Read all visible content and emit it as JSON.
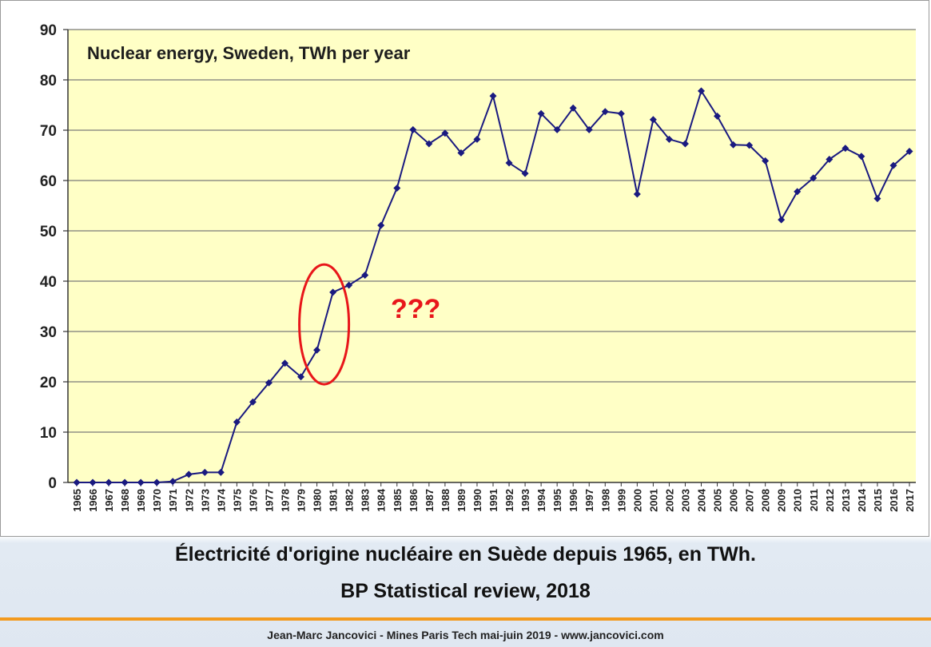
{
  "colors": {
    "plot_background": "#ffffc6",
    "line": "#1a1a80",
    "gridline": "#7a7a7a",
    "annotation": "#e8161a",
    "footer_rule": "#f39a1e"
  },
  "chart_data": {
    "type": "line",
    "title": "Nuclear energy, Sweden, TWh per year",
    "xlabel": "",
    "ylabel": "",
    "ylim": [
      0,
      90
    ],
    "yticks": [
      0,
      10,
      20,
      30,
      40,
      50,
      60,
      70,
      80,
      90
    ],
    "grid": true,
    "legend": "none",
    "series": [
      {
        "x": [
          "1965",
          "1966",
          "1967",
          "1968",
          "1969",
          "1970",
          "1971",
          "1972",
          "1973",
          "1974",
          "1975",
          "1976",
          "1977",
          "1978",
          "1979",
          "1980",
          "1981",
          "1982",
          "1983",
          "1984",
          "1985",
          "1986",
          "1987",
          "1988",
          "1989",
          "1990",
          "1991",
          "1992",
          "1993",
          "1994",
          "1995",
          "1996",
          "1997",
          "1998",
          "1999",
          "2000",
          "2001",
          "2002",
          "2003",
          "2004",
          "2005",
          "2006",
          "2007",
          "2008",
          "2009",
          "2010",
          "2011",
          "2012",
          "2013",
          "2014",
          "2015",
          "2016",
          "2017"
        ],
        "values": [
          0,
          0,
          0,
          0,
          0,
          0,
          0.2,
          1.6,
          2.0,
          2.0,
          12.0,
          16.0,
          19.8,
          23.7,
          21.0,
          26.3,
          37.8,
          39.2,
          41.2,
          51.1,
          58.5,
          70.1,
          67.3,
          69.4,
          65.5,
          68.2,
          76.8,
          63.5,
          61.4,
          73.3,
          70.1,
          74.4,
          70.1,
          73.7,
          73.3,
          57.3,
          72.1,
          68.2,
          67.3,
          77.8,
          72.8,
          67.1,
          67.0,
          63.9,
          52.2,
          57.8,
          60.5,
          64.2,
          66.4,
          64.8,
          56.4,
          63.0,
          65.8
        ]
      }
    ],
    "annotations": [
      {
        "type": "ellipse",
        "around_years": [
          "1980",
          "1981"
        ]
      },
      {
        "type": "text",
        "text": "???"
      }
    ]
  },
  "caption": {
    "line1": "Électricité d'origine nucléaire en Suède depuis 1965, en TWh.",
    "line2": "BP Statistical review, 2018"
  },
  "footer": {
    "text": "Jean-Marc Jancovici - Mines Paris Tech mai-juin 2019 - www.jancovici.com"
  }
}
